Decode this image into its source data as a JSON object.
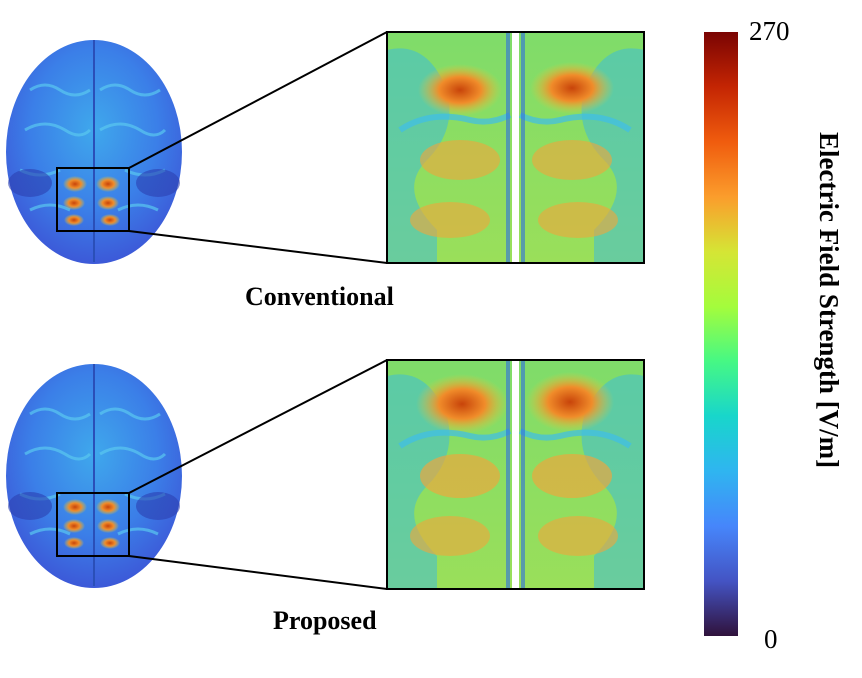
{
  "panels": [
    {
      "caption": "Conventional"
    },
    {
      "caption": "Proposed"
    }
  ],
  "colorbar": {
    "max_label": "270",
    "min_label": "0",
    "title": "Electric Field Strength [V/m]",
    "colors": [
      "#7a0403",
      "#c42503",
      "#f05c0e",
      "#fb9d2c",
      "#d5e535",
      "#a4fc3c",
      "#46f884",
      "#18d6cb",
      "#2fb5f0",
      "#4686fb",
      "#4454c4",
      "#30123b"
    ]
  }
}
